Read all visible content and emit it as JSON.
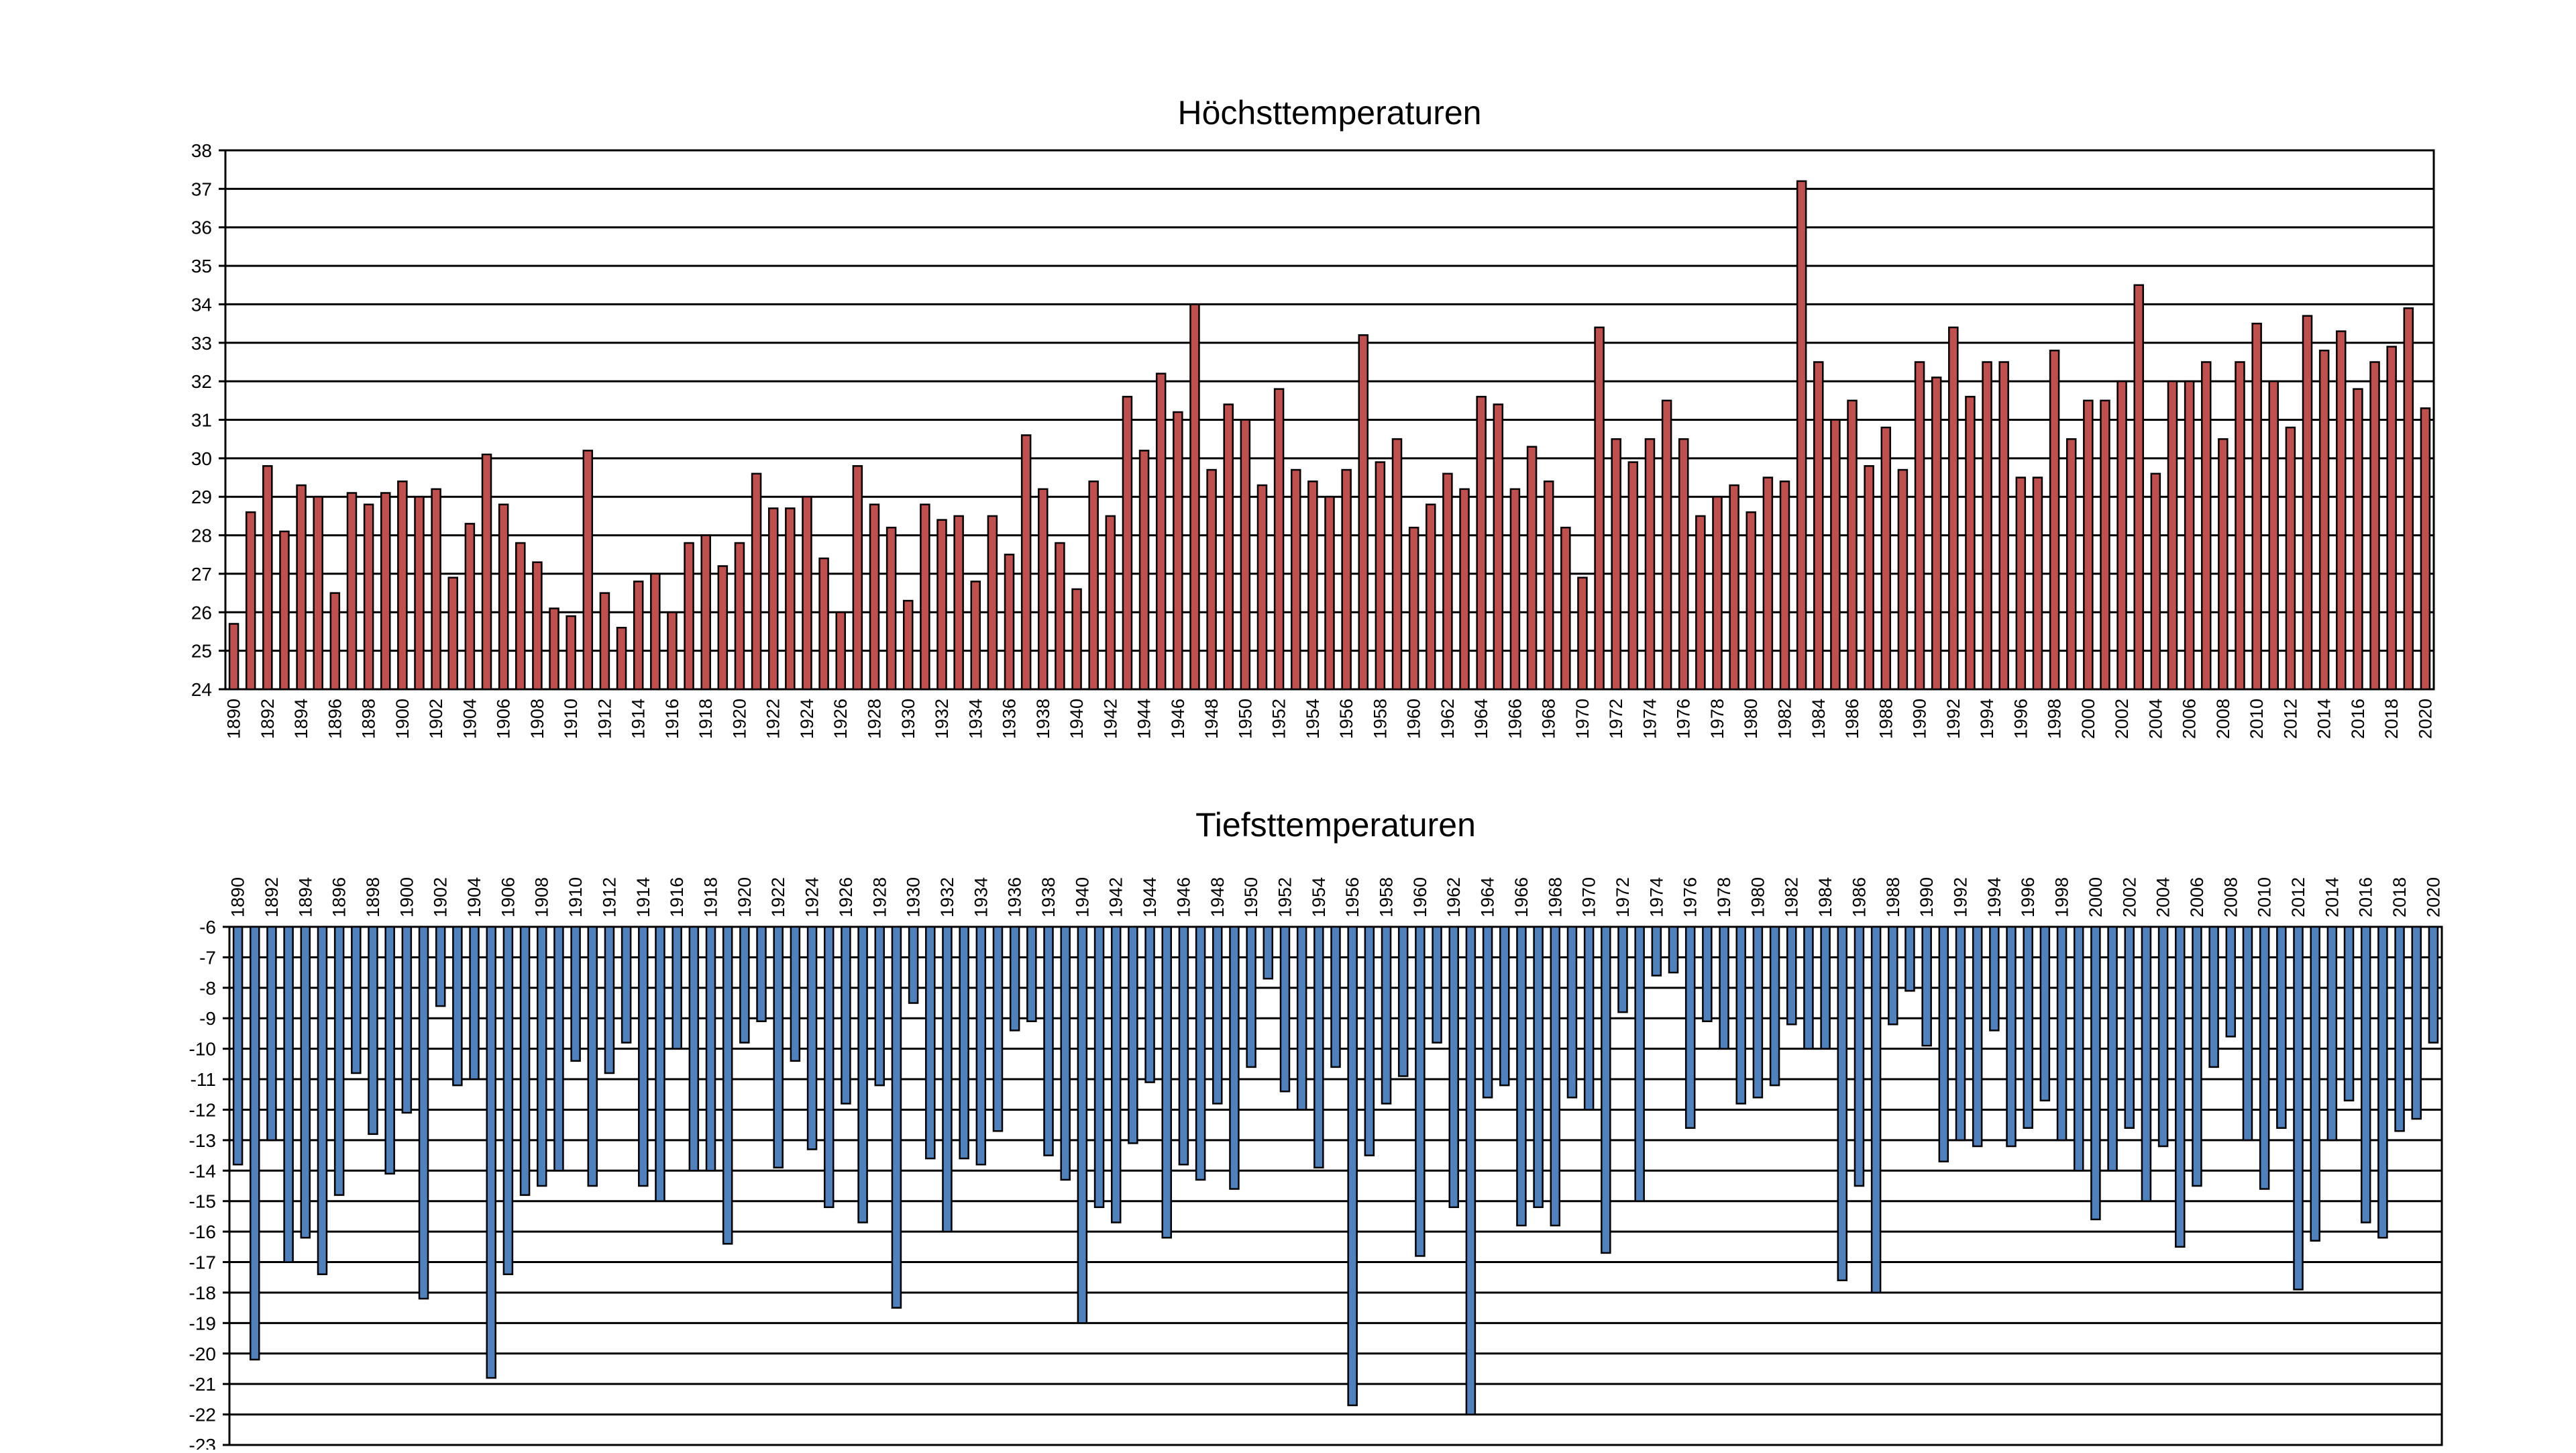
{
  "chart_data": [
    {
      "type": "bar",
      "title": "Höchsttemperaturen",
      "xlabel": "",
      "ylabel": "",
      "ylim": [
        24,
        38
      ],
      "grid": true,
      "legend": "none",
      "color": "#c0504d",
      "x_start": 1890,
      "tick_labels": [
        "1890",
        "1892",
        "1894",
        "1896",
        "1898",
        "1900",
        "1902",
        "1904",
        "1906",
        "1908",
        "1910",
        "1912",
        "1914",
        "1916",
        "1918",
        "1920",
        "1922",
        "1924",
        "1926",
        "1928",
        "1930",
        "1932",
        "1934",
        "1936",
        "1938",
        "1940",
        "1942",
        "1944",
        "1946",
        "1948",
        "1950",
        "1952",
        "1954",
        "1956",
        "1958",
        "1960",
        "1962",
        "1964",
        "1966",
        "1968",
        "1970",
        "1972",
        "1974",
        "1976",
        "1978",
        "1980",
        "1982",
        "1984",
        "1986",
        "1988",
        "1990",
        "1992",
        "1994",
        "1996",
        "1998",
        "2000",
        "2002",
        "2004",
        "2006",
        "2008",
        "2010",
        "2012",
        "2014",
        "2016",
        "2018",
        "2020"
      ],
      "values": [
        25.7,
        28.6,
        29.8,
        28.1,
        29.3,
        29.0,
        26.5,
        29.1,
        28.8,
        29.1,
        29.4,
        29.0,
        29.2,
        26.9,
        28.3,
        30.1,
        28.8,
        27.8,
        27.3,
        26.1,
        25.9,
        30.2,
        26.5,
        25.6,
        26.8,
        27.0,
        26.0,
        27.8,
        28.0,
        27.2,
        27.8,
        29.6,
        28.7,
        28.7,
        29.0,
        27.4,
        26.0,
        29.8,
        28.8,
        28.2,
        26.3,
        28.8,
        28.4,
        28.5,
        26.8,
        28.5,
        27.5,
        30.6,
        29.2,
        27.8,
        26.6,
        29.4,
        28.5,
        31.6,
        30.2,
        32.2,
        31.2,
        34.0,
        29.7,
        31.4,
        31.0,
        29.3,
        31.8,
        29.7,
        29.4,
        29.0,
        29.7,
        33.2,
        29.9,
        30.5,
        28.2,
        28.8,
        29.6,
        29.2,
        31.6,
        31.4,
        29.2,
        30.3,
        29.4,
        28.2,
        26.9,
        33.4,
        30.5,
        29.9,
        30.5,
        31.5,
        30.5,
        28.5,
        29.0,
        29.3,
        28.6,
        29.5,
        29.4,
        37.2,
        32.5,
        31.0,
        31.5,
        29.8,
        30.8,
        29.7,
        32.5,
        32.1,
        33.4,
        31.6,
        32.5,
        32.5,
        29.5,
        29.5,
        32.8,
        30.5,
        31.5,
        31.5,
        32.0,
        34.5,
        29.6,
        32.0,
        32.0,
        32.5,
        30.5,
        32.5,
        33.5,
        32.0,
        30.8,
        33.7,
        32.8,
        33.3,
        31.8,
        32.5,
        32.9,
        33.9,
        31.3
      ]
    },
    {
      "type": "bar",
      "title": "Tiefsttemperaturen",
      "xlabel": "",
      "ylabel": "",
      "ylim": [
        -23,
        -6
      ],
      "grid": true,
      "legend": "none",
      "color": "#4f81bd",
      "x_start": 1890,
      "tick_labels": [
        "1890",
        "1892",
        "1894",
        "1896",
        "1898",
        "1900",
        "1902",
        "1904",
        "1906",
        "1908",
        "1910",
        "1912",
        "1914",
        "1916",
        "1918",
        "1920",
        "1922",
        "1924",
        "1926",
        "1928",
        "1930",
        "1932",
        "1934",
        "1936",
        "1938",
        "1940",
        "1942",
        "1944",
        "1946",
        "1948",
        "1950",
        "1952",
        "1954",
        "1956",
        "1958",
        "1960",
        "1962",
        "1964",
        "1966",
        "1968",
        "1970",
        "1972",
        "1974",
        "1976",
        "1978",
        "1980",
        "1982",
        "1984",
        "1986",
        "1988",
        "1990",
        "1992",
        "1994",
        "1996",
        "1998",
        "2000",
        "2002",
        "2004",
        "2006",
        "2008",
        "2010",
        "2012",
        "2014",
        "2016",
        "2018",
        "2020"
      ],
      "values": [
        -13.8,
        -20.2,
        -13.0,
        -17.0,
        -16.2,
        -17.4,
        -14.8,
        -10.8,
        -12.8,
        -14.1,
        -12.1,
        -18.2,
        -8.6,
        -11.2,
        -11.0,
        -20.8,
        -17.4,
        -14.8,
        -14.5,
        -14.0,
        -10.4,
        -14.5,
        -10.8,
        -9.8,
        -14.5,
        -15.0,
        -10.0,
        -14.0,
        -14.0,
        -16.4,
        -9.8,
        -9.1,
        -13.9,
        -10.4,
        -13.3,
        -15.2,
        -11.8,
        -15.7,
        -11.2,
        -18.5,
        -8.5,
        -13.6,
        -16.0,
        -13.6,
        -13.8,
        -12.7,
        -9.4,
        -9.1,
        -13.5,
        -14.3,
        -19.0,
        -15.2,
        -15.7,
        -13.1,
        -11.1,
        -16.2,
        -13.8,
        -14.3,
        -11.8,
        -14.6,
        -10.6,
        -7.7,
        -11.4,
        -12.0,
        -13.9,
        -10.6,
        -21.7,
        -13.5,
        -11.8,
        -10.9,
        -16.8,
        -9.8,
        -15.2,
        -22.0,
        -11.6,
        -11.2,
        -15.8,
        -15.2,
        -15.8,
        -11.6,
        -12.0,
        -16.7,
        -8.8,
        -15.0,
        -7.6,
        -7.5,
        -12.6,
        -9.1,
        -10.0,
        -11.8,
        -11.6,
        -11.2,
        -9.2,
        -10.0,
        -10.0,
        -17.6,
        -14.5,
        -18.0,
        -9.2,
        -8.1,
        -9.9,
        -13.7,
        -13.0,
        -13.2,
        -9.4,
        -13.2,
        -12.6,
        -11.7,
        -13.0,
        -14.0,
        -15.6,
        -14.0,
        -12.6,
        -15.0,
        -13.2,
        -16.5,
        -14.5,
        -10.6,
        -9.6,
        -13.0,
        -14.6,
        -12.6,
        -17.9,
        -16.3,
        -13.0,
        -11.7,
        -15.7,
        -16.2,
        -12.7,
        -12.3,
        -9.8
      ]
    }
  ]
}
